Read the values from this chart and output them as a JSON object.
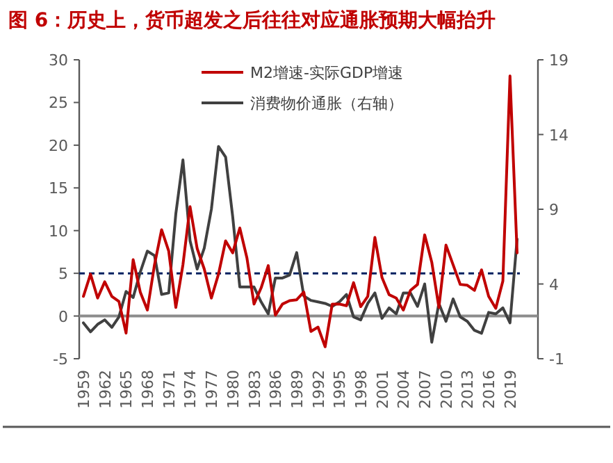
{
  "chart_data": {
    "type": "line",
    "title": "图 6：历史上，货币超发之后往往对应通胀预期大幅抬升",
    "categories": [
      "1959",
      null,
      null,
      "1962",
      null,
      null,
      "1965",
      null,
      null,
      "1968",
      null,
      null,
      "1971",
      null,
      null,
      "1974",
      null,
      null,
      "1977",
      null,
      null,
      "1980",
      null,
      null,
      "1983",
      null,
      null,
      "1986",
      null,
      null,
      "1989",
      null,
      null,
      "1992",
      null,
      null,
      "1995",
      null,
      null,
      "1998",
      null,
      null,
      "2001",
      null,
      null,
      "2004",
      null,
      null,
      "2007",
      null,
      null,
      "2010",
      null,
      null,
      "2013",
      null,
      null,
      "2016",
      null,
      null,
      "2019",
      null
    ],
    "series": [
      {
        "name": "M2增速-实际GDP增速",
        "color": "#c00000",
        "values": [
          2.3,
          4.9,
          2.1,
          4.0,
          2.3,
          1.7,
          -2.0,
          6.6,
          2.8,
          0.7,
          6.0,
          10.1,
          7.6,
          1.0,
          6.0,
          12.8,
          7.9,
          5.5,
          2.1,
          4.9,
          8.8,
          7.4,
          10.3,
          6.8,
          1.4,
          3.3,
          5.9,
          0.1,
          1.4,
          1.8,
          1.9,
          2.8,
          -1.8,
          -1.3,
          -3.6,
          1.4,
          1.4,
          1.2,
          3.9,
          1.1,
          2.3,
          9.2,
          4.5,
          2.5,
          2.1,
          0.7,
          3.0,
          3.7,
          9.5,
          6.3,
          1.0,
          8.3,
          6.0,
          3.7,
          3.6,
          3.0,
          5.4,
          2.3,
          0.9,
          4.1,
          28.1,
          7.4
        ]
      },
      {
        "name": "消费物价通胀（右轴）",
        "color": "#404040",
        "axis": "y2",
        "values": [
          1.4,
          0.8,
          1.3,
          1.6,
          1.1,
          1.8,
          3.5,
          3.1,
          4.8,
          6.2,
          5.9,
          3.3,
          3.4,
          8.7,
          12.3,
          6.9,
          5.0,
          6.4,
          9.0,
          13.2,
          12.5,
          8.5,
          3.8,
          3.8,
          3.8,
          2.8,
          2.0,
          4.4,
          4.4,
          4.6,
          6.1,
          3.2,
          2.9,
          2.8,
          2.7,
          2.5,
          2.8,
          3.3,
          1.8,
          1.6,
          2.7,
          3.4,
          1.7,
          2.4,
          2.0,
          3.4,
          3.4,
          2.5,
          4.0,
          0.1,
          2.7,
          1.5,
          3.0,
          1.8,
          1.5,
          0.9,
          0.7,
          2.1,
          2.0,
          2.4,
          1.4,
          7.0
        ]
      }
    ],
    "ylim": [
      -5,
      30
    ],
    "yticks": [
      -5,
      0,
      5,
      10,
      15,
      20,
      25,
      30
    ],
    "y2lim": [
      -1,
      19
    ],
    "y2ticks": [
      -1,
      4,
      9,
      14,
      19
    ],
    "ref_lines": [
      {
        "axis": "y",
        "value": 5,
        "color": "#002060",
        "line_style": "dashed"
      }
    ],
    "legend": "top right",
    "grid": false,
    "marker": "none",
    "line_style": "solid"
  }
}
